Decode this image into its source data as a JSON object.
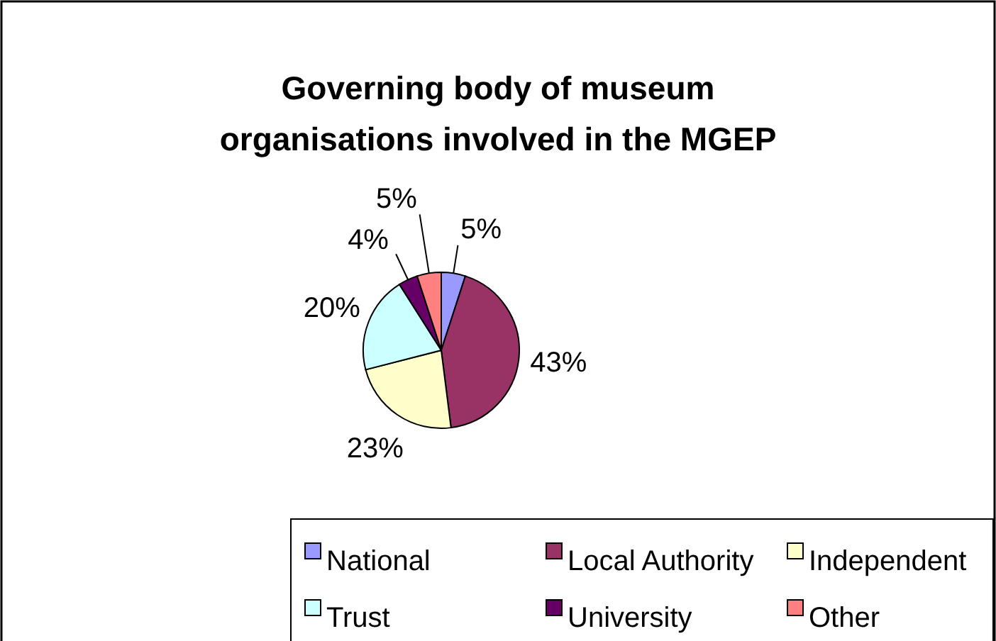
{
  "chart_data": {
    "type": "pie",
    "title": "Governing body of museum organisations involved in the MGEP",
    "categories": [
      "National",
      "Local Authority",
      "Independent",
      "Trust",
      "University",
      "Other"
    ],
    "values": [
      5,
      43,
      23,
      20,
      4,
      5
    ],
    "colors": [
      "#9999ff",
      "#993366",
      "#ffffcc",
      "#ccffff",
      "#660066",
      "#ff8080"
    ],
    "value_labels": [
      "5%",
      "43%",
      "23%",
      "20%",
      "4%",
      "5%"
    ],
    "legend": "bottom"
  }
}
